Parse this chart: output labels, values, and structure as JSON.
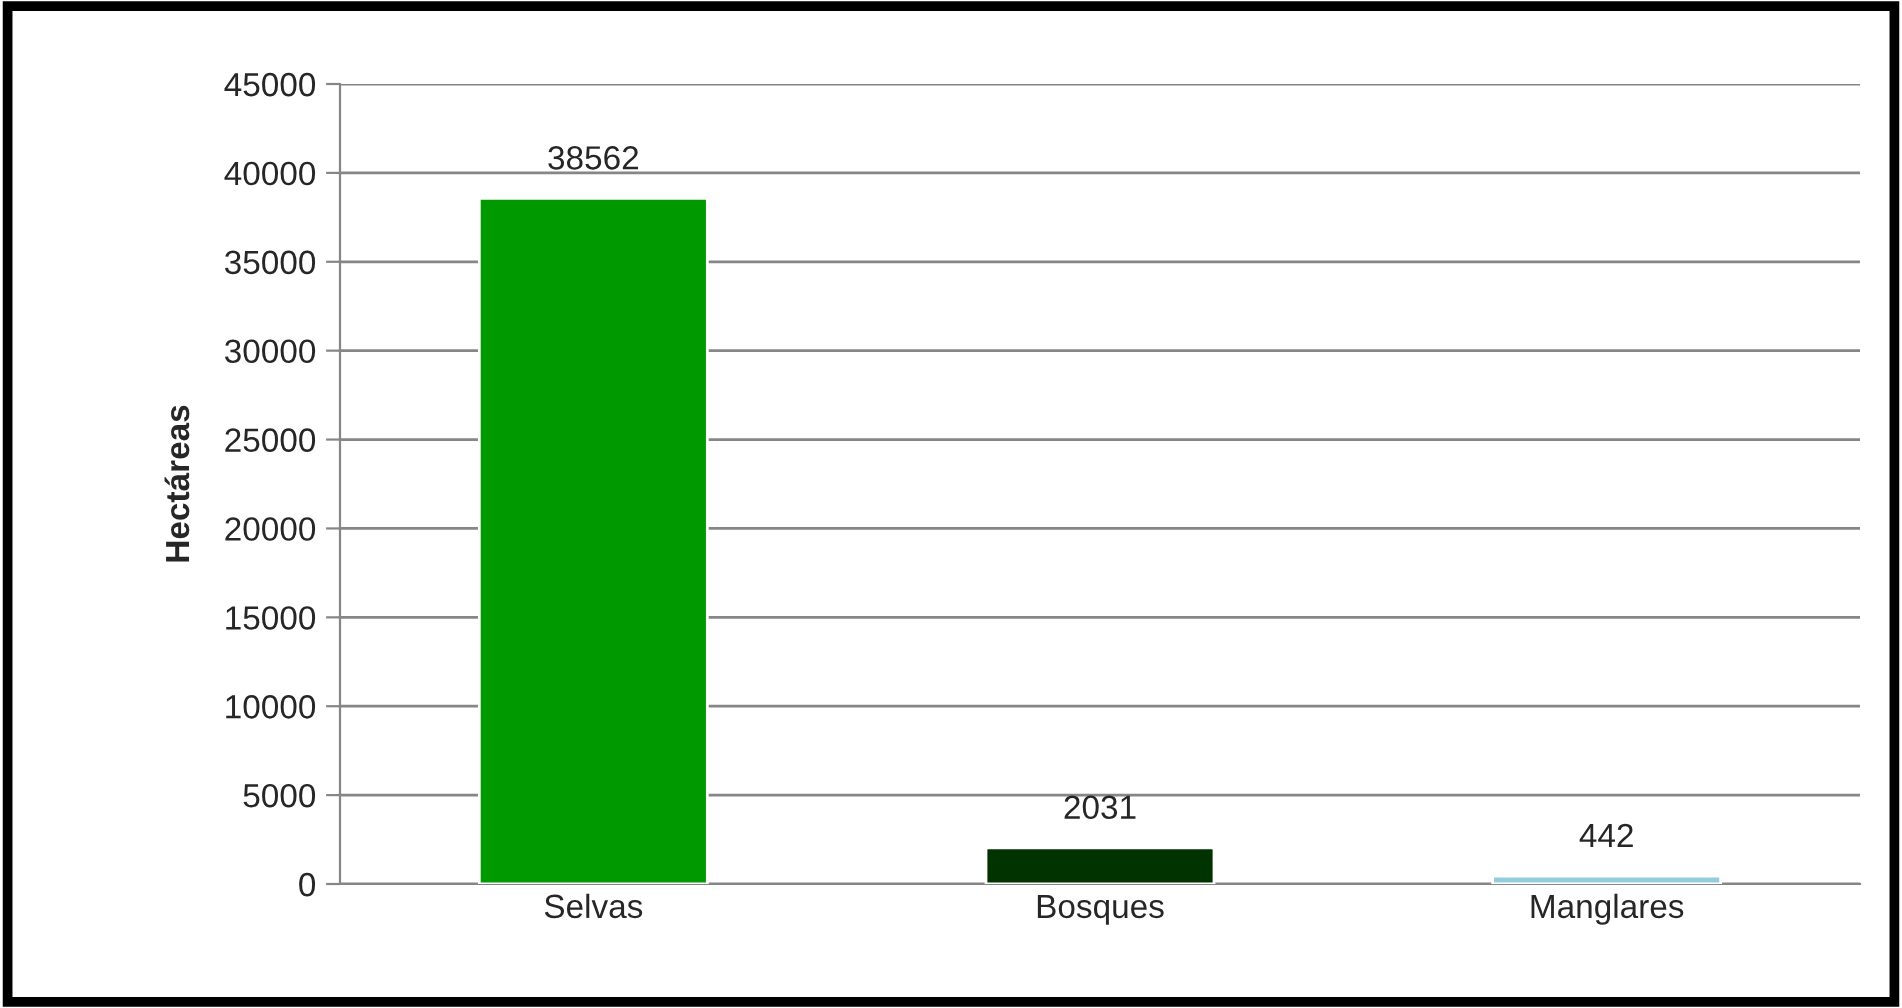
{
  "chart_data": {
    "type": "bar",
    "ylabel": "Hectáreas",
    "categories": [
      "Selvas",
      "Bosques",
      "Manglares"
    ],
    "values": [
      38562,
      2031,
      442
    ],
    "colors": [
      "#009900",
      "#003300",
      "#93cddd"
    ],
    "ylim": [
      0,
      45000
    ],
    "yticks": [
      0,
      5000,
      10000,
      15000,
      20000,
      25000,
      30000,
      35000,
      40000,
      45000
    ],
    "grid": "y",
    "data_labels": true
  }
}
